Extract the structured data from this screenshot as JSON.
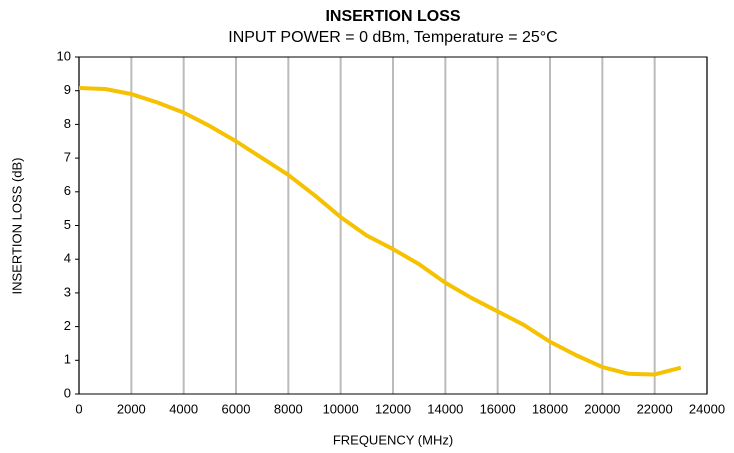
{
  "chart_data": {
    "type": "line",
    "title": "INSERTION LOSS",
    "subtitle": "INPUT POWER = 0 dBm, Temperature = 25°C",
    "xlabel": "FREQUENCY (MHz)",
    "ylabel": "INSERTION LOSS (dB)",
    "x": [
      0,
      1000,
      2000,
      3000,
      4000,
      5000,
      6000,
      7000,
      8000,
      9000,
      10000,
      11000,
      12000,
      13000,
      14000,
      15000,
      16000,
      17000,
      18000,
      19000,
      20000,
      21000,
      22000,
      23000
    ],
    "series": [
      {
        "color": "#f5c100",
        "values": [
          9.08,
          9.05,
          8.9,
          8.65,
          8.35,
          7.95,
          7.5,
          7.0,
          6.5,
          5.9,
          5.25,
          4.7,
          4.3,
          3.85,
          3.3,
          2.85,
          2.45,
          2.05,
          1.55,
          1.15,
          0.8,
          0.6,
          0.58,
          0.78
        ]
      }
    ],
    "xlim": [
      0,
      24000
    ],
    "xticks": [
      0,
      2000,
      4000,
      6000,
      8000,
      10000,
      12000,
      14000,
      16000,
      18000,
      20000,
      22000,
      24000
    ],
    "ylim": [
      0,
      10
    ],
    "yticks": [
      0,
      1,
      2,
      3,
      4,
      5,
      6,
      7,
      8,
      9,
      10
    ],
    "grid": "x"
  }
}
